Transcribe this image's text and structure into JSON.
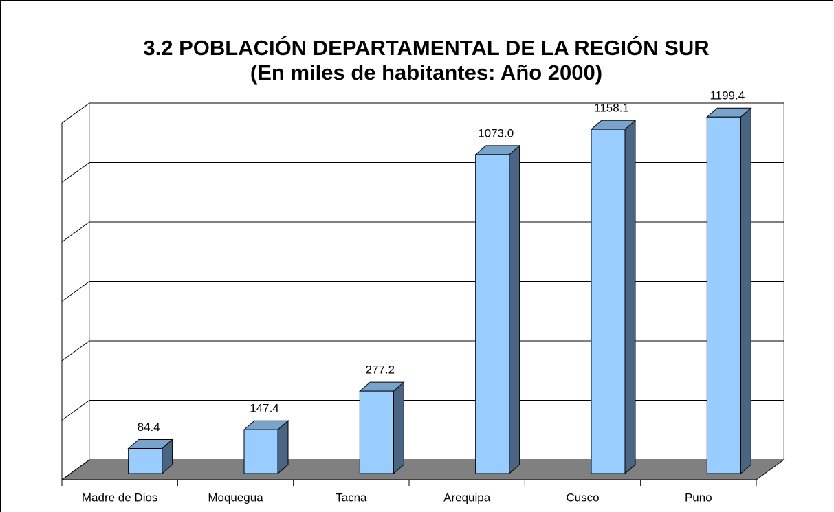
{
  "chart_data": {
    "type": "bar3d",
    "title": "3.2 POBLACIÓN DEPARTAMENTAL DE LA REGIÓN SUR",
    "subtitle": "(En miles de habitantes: Año 2000)",
    "categories": [
      "Madre de Dios",
      "Moquegua",
      "Tacna",
      "Arequipa",
      "Cusco",
      "Puno"
    ],
    "values": [
      84.4,
      147.4,
      277.2,
      1073.0,
      1158.1,
      1199.4
    ],
    "value_labels": [
      "84.4",
      "147.4",
      "277.2",
      "1073.0",
      "1158.1",
      "1199.4"
    ],
    "color": "#99ccff",
    "ylim": [
      0,
      1200
    ],
    "yticks": [
      0,
      200,
      400,
      600,
      800,
      1000,
      1200
    ],
    "grid": true
  }
}
